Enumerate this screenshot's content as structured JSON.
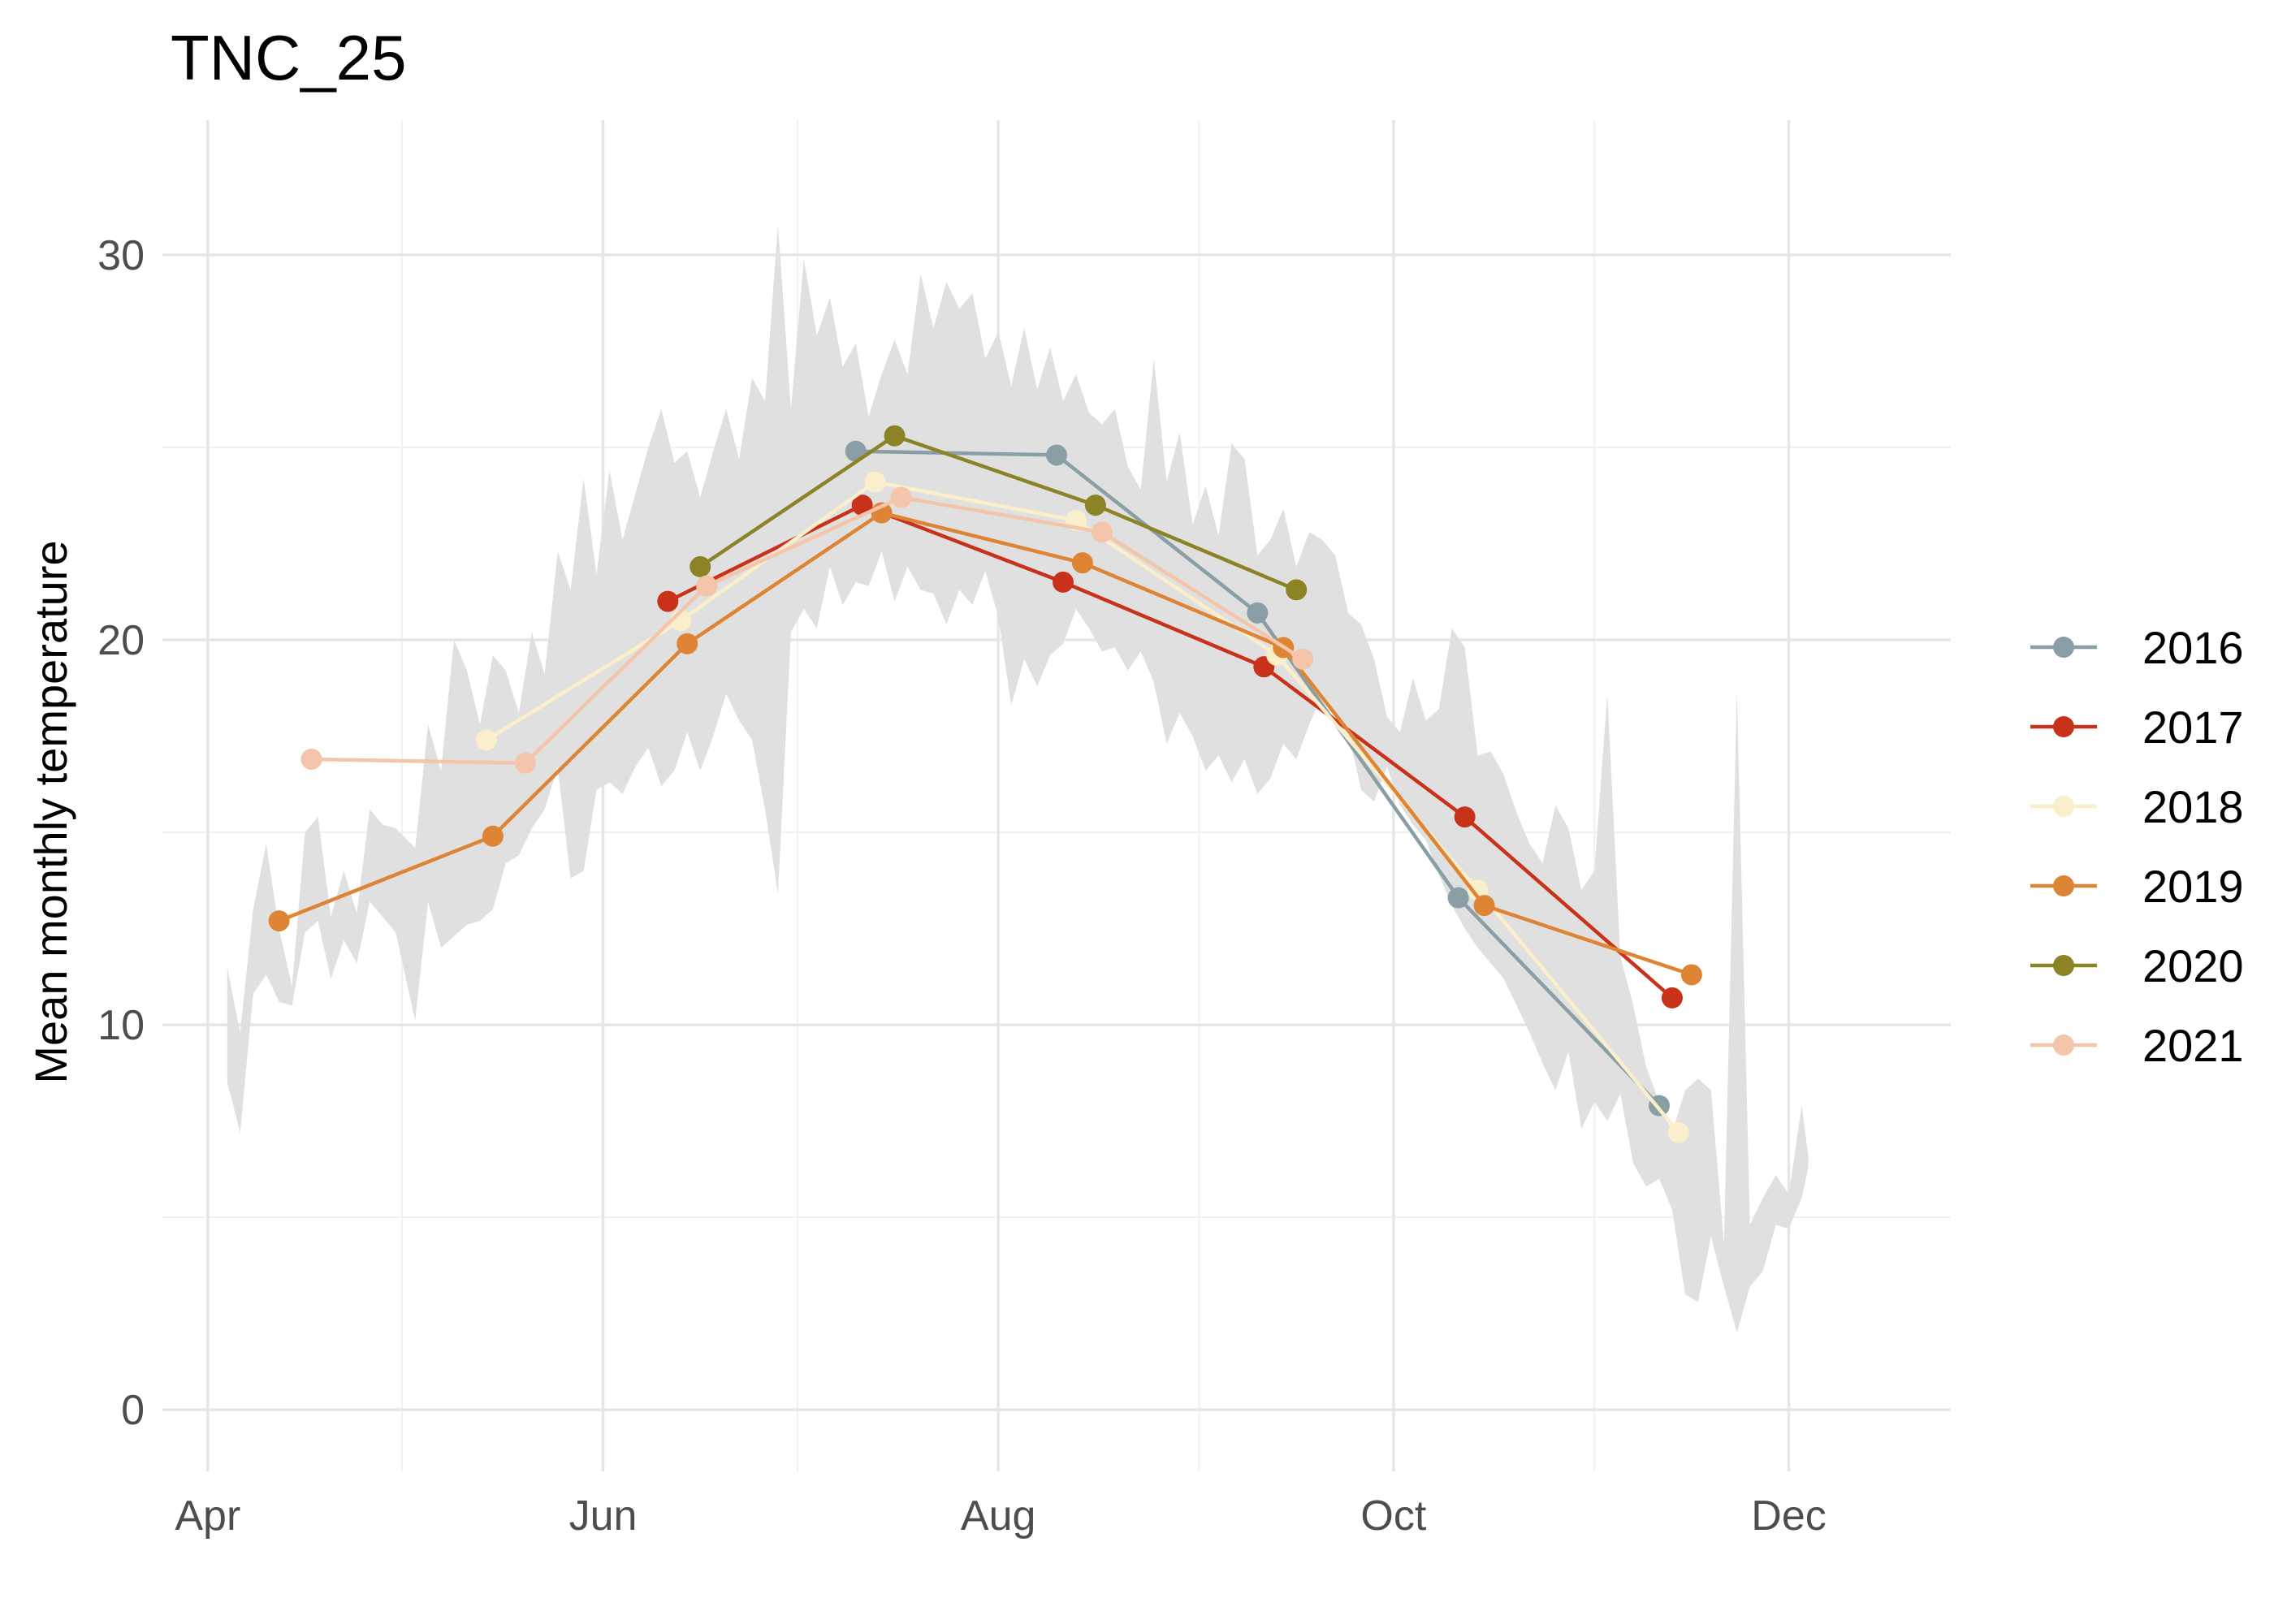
{
  "chart_data": {
    "type": "line",
    "title": "TNC_25",
    "xlabel": "",
    "ylabel": "Mean monthly temperature",
    "x_axis_type": "date",
    "xlim": [
      "2023-03-25",
      "2023-12-26"
    ],
    "ylim": [
      -1.6,
      33.5
    ],
    "x_ticks": [
      {
        "date": "2023-04-01",
        "label": "Apr"
      },
      {
        "date": "2023-06-01",
        "label": "Jun"
      },
      {
        "date": "2023-08-01",
        "label": "Aug"
      },
      {
        "date": "2023-10-01",
        "label": "Oct"
      },
      {
        "date": "2023-12-01",
        "label": "Dec"
      }
    ],
    "x_minor_gridlines": [
      "2023-05-01",
      "2023-07-01",
      "2023-09-01",
      "2023-11-01"
    ],
    "y_ticks": [
      0,
      10,
      20,
      30
    ],
    "y_minor_gridlines": [
      5,
      15,
      25
    ],
    "grid": true,
    "legend_position": "right",
    "series": [
      {
        "name": "2016",
        "color": "#8a9ea6",
        "points": [
          [
            "2023-07-10",
            24.9
          ],
          [
            "2023-08-10",
            24.8
          ],
          [
            "2023-09-10",
            20.7
          ],
          [
            "2023-10-11",
            13.3
          ],
          [
            "2023-11-11",
            7.9
          ]
        ]
      },
      {
        "name": "2017",
        "color": "#c8321a",
        "points": [
          [
            "2023-06-11",
            21.0
          ],
          [
            "2023-07-11",
            23.5
          ],
          [
            "2023-08-11",
            21.5
          ],
          [
            "2023-09-11",
            19.3
          ],
          [
            "2023-10-12",
            15.4
          ],
          [
            "2023-11-13",
            10.7
          ]
        ]
      },
      {
        "name": "2018",
        "color": "#fbeecb",
        "points": [
          [
            "2023-05-14",
            17.4
          ],
          [
            "2023-06-13",
            20.5
          ],
          [
            "2023-07-13",
            24.1
          ],
          [
            "2023-08-13",
            23.1
          ],
          [
            "2023-09-13",
            19.6
          ],
          [
            "2023-10-14",
            13.5
          ],
          [
            "2023-11-14",
            7.2
          ]
        ]
      },
      {
        "name": "2019",
        "color": "#de8535",
        "points": [
          [
            "2023-04-12",
            12.7
          ],
          [
            "2023-05-15",
            14.9
          ],
          [
            "2023-06-14",
            19.9
          ],
          [
            "2023-07-14",
            23.3
          ],
          [
            "2023-08-14",
            22.0
          ],
          [
            "2023-09-14",
            19.8
          ],
          [
            "2023-10-15",
            13.1
          ],
          [
            "2023-11-16",
            11.3
          ]
        ]
      },
      {
        "name": "2020",
        "color": "#8b8325",
        "points": [
          [
            "2023-06-16",
            21.9
          ],
          [
            "2023-07-16",
            25.3
          ],
          [
            "2023-08-16",
            23.5
          ],
          [
            "2023-09-16",
            21.3
          ]
        ]
      },
      {
        "name": "2021",
        "color": "#f4c5ab",
        "points": [
          [
            "2023-04-17",
            16.9
          ],
          [
            "2023-05-20",
            16.8
          ],
          [
            "2023-06-17",
            21.4
          ],
          [
            "2023-07-17",
            23.7
          ],
          [
            "2023-08-17",
            22.8
          ],
          [
            "2023-09-17",
            19.5
          ]
        ]
      }
    ],
    "envelope": {
      "color": "#e0e0e0",
      "upper": [
        [
          "2023-04-04",
          11.5
        ],
        [
          "2023-04-06",
          9.8
        ],
        [
          "2023-04-08",
          13.0
        ],
        [
          "2023-04-10",
          14.7
        ],
        [
          "2023-04-12",
          12.5
        ],
        [
          "2023-04-14",
          11.0
        ],
        [
          "2023-04-16",
          15.0
        ],
        [
          "2023-04-18",
          15.4
        ],
        [
          "2023-04-20",
          12.8
        ],
        [
          "2023-04-22",
          14.0
        ],
        [
          "2023-04-24",
          12.9
        ],
        [
          "2023-04-26",
          15.6
        ],
        [
          "2023-04-28",
          15.2
        ],
        [
          "2023-04-30",
          15.1
        ],
        [
          "2023-05-03",
          14.6
        ],
        [
          "2023-05-05",
          17.8
        ],
        [
          "2023-05-07",
          16.6
        ],
        [
          "2023-05-09",
          20.0
        ],
        [
          "2023-05-11",
          19.2
        ],
        [
          "2023-05-13",
          17.8
        ],
        [
          "2023-05-15",
          19.6
        ],
        [
          "2023-05-17",
          19.2
        ],
        [
          "2023-05-19",
          18.1
        ],
        [
          "2023-05-21",
          20.2
        ],
        [
          "2023-05-23",
          19.1
        ],
        [
          "2023-05-25",
          22.3
        ],
        [
          "2023-05-27",
          21.3
        ],
        [
          "2023-05-29",
          24.2
        ],
        [
          "2023-05-31",
          21.7
        ],
        [
          "2023-06-02",
          24.4
        ],
        [
          "2023-06-04",
          22.6
        ],
        [
          "2023-06-06",
          23.8
        ],
        [
          "2023-06-08",
          25.0
        ],
        [
          "2023-06-10",
          26.0
        ],
        [
          "2023-06-12",
          24.6
        ],
        [
          "2023-06-14",
          24.9
        ],
        [
          "2023-06-16",
          23.7
        ],
        [
          "2023-06-18",
          24.9
        ],
        [
          "2023-06-20",
          26.0
        ],
        [
          "2023-06-22",
          24.7
        ],
        [
          "2023-06-24",
          26.8
        ],
        [
          "2023-06-26",
          26.2
        ],
        [
          "2023-06-28",
          30.8
        ],
        [
          "2023-06-30",
          26.0
        ],
        [
          "2023-07-02",
          29.9
        ],
        [
          "2023-07-04",
          27.9
        ],
        [
          "2023-07-06",
          28.9
        ],
        [
          "2023-07-08",
          27.1
        ],
        [
          "2023-07-10",
          27.7
        ],
        [
          "2023-07-12",
          25.8
        ],
        [
          "2023-07-14",
          26.9
        ],
        [
          "2023-07-16",
          27.8
        ],
        [
          "2023-07-18",
          26.9
        ],
        [
          "2023-07-20",
          29.5
        ],
        [
          "2023-07-22",
          28.1
        ],
        [
          "2023-07-24",
          29.3
        ],
        [
          "2023-07-26",
          28.6
        ],
        [
          "2023-07-28",
          29.0
        ],
        [
          "2023-07-30",
          27.3
        ],
        [
          "2023-08-01",
          28.0
        ],
        [
          "2023-08-03",
          26.6
        ],
        [
          "2023-08-05",
          28.1
        ],
        [
          "2023-08-07",
          26.5
        ],
        [
          "2023-08-09",
          27.6
        ],
        [
          "2023-08-11",
          26.2
        ],
        [
          "2023-08-13",
          26.9
        ],
        [
          "2023-08-15",
          25.9
        ],
        [
          "2023-08-17",
          25.6
        ],
        [
          "2023-08-19",
          26.0
        ],
        [
          "2023-08-21",
          24.5
        ],
        [
          "2023-08-23",
          23.9
        ],
        [
          "2023-08-25",
          27.3
        ],
        [
          "2023-08-27",
          24.1
        ],
        [
          "2023-08-29",
          25.4
        ],
        [
          "2023-08-31",
          23.0
        ],
        [
          "2023-09-02",
          24.0
        ],
        [
          "2023-09-04",
          22.7
        ],
        [
          "2023-09-06",
          25.1
        ],
        [
          "2023-09-08",
          24.7
        ],
        [
          "2023-09-10",
          22.2
        ],
        [
          "2023-09-12",
          22.6
        ],
        [
          "2023-09-14",
          23.4
        ],
        [
          "2023-09-16",
          21.9
        ],
        [
          "2023-09-18",
          22.8
        ],
        [
          "2023-09-20",
          22.6
        ],
        [
          "2023-09-22",
          22.2
        ],
        [
          "2023-09-24",
          20.7
        ],
        [
          "2023-09-26",
          20.4
        ],
        [
          "2023-09-28",
          19.5
        ],
        [
          "2023-09-30",
          18.0
        ],
        [
          "2023-10-02",
          17.6
        ],
        [
          "2023-10-04",
          19.0
        ],
        [
          "2023-10-06",
          17.9
        ],
        [
          "2023-10-08",
          18.2
        ],
        [
          "2023-10-10",
          20.3
        ],
        [
          "2023-10-12",
          19.8
        ],
        [
          "2023-10-14",
          17.0
        ],
        [
          "2023-10-16",
          17.1
        ],
        [
          "2023-10-18",
          16.5
        ],
        [
          "2023-10-20",
          15.5
        ],
        [
          "2023-10-22",
          14.7
        ],
        [
          "2023-10-24",
          14.2
        ],
        [
          "2023-10-26",
          15.7
        ],
        [
          "2023-10-28",
          15.1
        ],
        [
          "2023-10-30",
          13.5
        ],
        [
          "2023-11-01",
          14.0
        ],
        [
          "2023-11-03",
          18.6
        ],
        [
          "2023-11-05",
          11.8
        ],
        [
          "2023-11-07",
          10.5
        ],
        [
          "2023-11-09",
          8.9
        ],
        [
          "2023-11-11",
          8.0
        ],
        [
          "2023-11-13",
          7.2
        ],
        [
          "2023-11-15",
          8.3
        ],
        [
          "2023-11-17",
          8.6
        ],
        [
          "2023-11-19",
          8.3
        ],
        [
          "2023-11-21",
          4.3
        ],
        [
          "2023-11-23",
          18.7
        ],
        [
          "2023-11-25",
          4.8
        ],
        [
          "2023-11-27",
          5.5
        ],
        [
          "2023-11-29",
          6.1
        ],
        [
          "2023-12-01",
          5.6
        ],
        [
          "2023-12-03",
          7.9
        ],
        [
          "2023-12-04",
          6.6
        ]
      ],
      "lower": [
        [
          "2023-04-04",
          8.5
        ],
        [
          "2023-04-06",
          7.2
        ],
        [
          "2023-04-08",
          10.8
        ],
        [
          "2023-04-10",
          11.3
        ],
        [
          "2023-04-12",
          10.6
        ],
        [
          "2023-04-14",
          10.5
        ],
        [
          "2023-04-16",
          12.4
        ],
        [
          "2023-04-18",
          12.7
        ],
        [
          "2023-04-20",
          11.2
        ],
        [
          "2023-04-22",
          12.2
        ],
        [
          "2023-04-24",
          11.6
        ],
        [
          "2023-04-26",
          13.2
        ],
        [
          "2023-04-28",
          12.8
        ],
        [
          "2023-04-30",
          12.4
        ],
        [
          "2023-05-03",
          10.1
        ],
        [
          "2023-05-05",
          13.2
        ],
        [
          "2023-05-07",
          12.0
        ],
        [
          "2023-05-09",
          12.3
        ],
        [
          "2023-05-11",
          12.6
        ],
        [
          "2023-05-13",
          12.7
        ],
        [
          "2023-05-15",
          13.0
        ],
        [
          "2023-05-17",
          14.2
        ],
        [
          "2023-05-19",
          14.4
        ],
        [
          "2023-05-21",
          15.1
        ],
        [
          "2023-05-23",
          15.6
        ],
        [
          "2023-05-25",
          16.7
        ],
        [
          "2023-05-27",
          13.8
        ],
        [
          "2023-05-29",
          14.0
        ],
        [
          "2023-05-31",
          16.1
        ],
        [
          "2023-06-02",
          16.3
        ],
        [
          "2023-06-04",
          16.0
        ],
        [
          "2023-06-06",
          16.7
        ],
        [
          "2023-06-08",
          17.2
        ],
        [
          "2023-06-10",
          16.2
        ],
        [
          "2023-06-12",
          16.6
        ],
        [
          "2023-06-14",
          17.6
        ],
        [
          "2023-06-16",
          16.6
        ],
        [
          "2023-06-18",
          17.5
        ],
        [
          "2023-06-20",
          18.6
        ],
        [
          "2023-06-22",
          17.9
        ],
        [
          "2023-06-24",
          17.4
        ],
        [
          "2023-06-26",
          15.6
        ],
        [
          "2023-06-28",
          13.4
        ],
        [
          "2023-06-30",
          20.2
        ],
        [
          "2023-07-02",
          20.8
        ],
        [
          "2023-07-04",
          20.3
        ],
        [
          "2023-07-06",
          21.9
        ],
        [
          "2023-07-08",
          20.9
        ],
        [
          "2023-07-10",
          21.5
        ],
        [
          "2023-07-12",
          21.4
        ],
        [
          "2023-07-14",
          22.3
        ],
        [
          "2023-07-16",
          21.0
        ],
        [
          "2023-07-18",
          21.9
        ],
        [
          "2023-07-20",
          21.3
        ],
        [
          "2023-07-22",
          21.2
        ],
        [
          "2023-07-24",
          20.4
        ],
        [
          "2023-07-26",
          21.3
        ],
        [
          "2023-07-28",
          20.9
        ],
        [
          "2023-07-30",
          21.8
        ],
        [
          "2023-08-01",
          20.6
        ],
        [
          "2023-08-03",
          18.3
        ],
        [
          "2023-08-05",
          19.5
        ],
        [
          "2023-08-07",
          18.8
        ],
        [
          "2023-08-09",
          19.6
        ],
        [
          "2023-08-11",
          19.9
        ],
        [
          "2023-08-13",
          20.8
        ],
        [
          "2023-08-15",
          20.3
        ],
        [
          "2023-08-17",
          19.7
        ],
        [
          "2023-08-19",
          19.8
        ],
        [
          "2023-08-21",
          19.2
        ],
        [
          "2023-08-23",
          19.7
        ],
        [
          "2023-08-25",
          18.9
        ],
        [
          "2023-08-27",
          17.3
        ],
        [
          "2023-08-29",
          18.1
        ],
        [
          "2023-08-31",
          17.5
        ],
        [
          "2023-09-02",
          16.6
        ],
        [
          "2023-09-04",
          17.0
        ],
        [
          "2023-09-06",
          16.3
        ],
        [
          "2023-09-08",
          16.9
        ],
        [
          "2023-09-10",
          16.0
        ],
        [
          "2023-09-12",
          16.4
        ],
        [
          "2023-09-14",
          17.3
        ],
        [
          "2023-09-16",
          16.9
        ],
        [
          "2023-09-18",
          17.8
        ],
        [
          "2023-09-20",
          18.6
        ],
        [
          "2023-09-22",
          18.0
        ],
        [
          "2023-09-24",
          17.6
        ],
        [
          "2023-09-26",
          16.1
        ],
        [
          "2023-09-28",
          15.8
        ],
        [
          "2023-09-30",
          16.7
        ],
        [
          "2023-10-02",
          15.7
        ],
        [
          "2023-10-04",
          15.2
        ],
        [
          "2023-10-06",
          14.8
        ],
        [
          "2023-10-08",
          13.9
        ],
        [
          "2023-10-10",
          13.1
        ],
        [
          "2023-10-12",
          12.5
        ],
        [
          "2023-10-14",
          12.0
        ],
        [
          "2023-10-16",
          11.6
        ],
        [
          "2023-10-18",
          11.2
        ],
        [
          "2023-10-20",
          10.5
        ],
        [
          "2023-10-22",
          9.8
        ],
        [
          "2023-10-24",
          9.0
        ],
        [
          "2023-10-26",
          8.3
        ],
        [
          "2023-10-28",
          9.3
        ],
        [
          "2023-10-30",
          7.3
        ],
        [
          "2023-11-01",
          8.0
        ],
        [
          "2023-11-03",
          7.5
        ],
        [
          "2023-11-05",
          8.2
        ],
        [
          "2023-11-07",
          6.4
        ],
        [
          "2023-11-09",
          5.8
        ],
        [
          "2023-11-11",
          6.0
        ],
        [
          "2023-11-13",
          5.2
        ],
        [
          "2023-11-15",
          3.0
        ],
        [
          "2023-11-17",
          2.8
        ],
        [
          "2023-11-19",
          4.5
        ],
        [
          "2023-11-21",
          3.2
        ],
        [
          "2023-11-23",
          2.0
        ],
        [
          "2023-11-25",
          3.2
        ],
        [
          "2023-11-27",
          3.6
        ],
        [
          "2023-11-29",
          4.8
        ],
        [
          "2023-12-01",
          4.7
        ],
        [
          "2023-12-03",
          5.5
        ],
        [
          "2023-12-04",
          6.3
        ]
      ]
    }
  }
}
